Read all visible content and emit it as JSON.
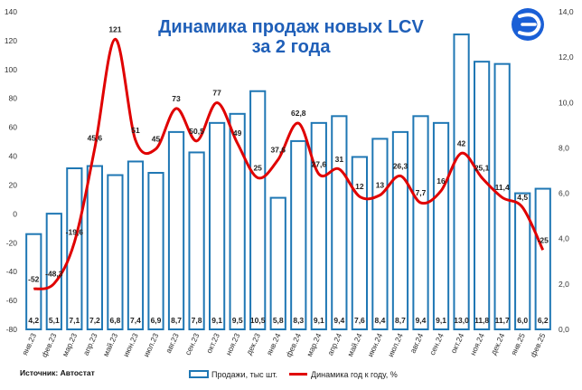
{
  "chart_data": {
    "type": "bar+line",
    "title_line1": "Динамика продаж новых LCV",
    "title_line2": "за 2 года",
    "categories": [
      "янв.23",
      "фев.23",
      "мар.23",
      "апр.23",
      "май.23",
      "июн.23",
      "июл.23",
      "авг.23",
      "сен.23",
      "окт.23",
      "ноя.23",
      "дек.23",
      "янв.24",
      "фев.24",
      "мар.24",
      "апр.24",
      "май.24",
      "июн.24",
      "июл.24",
      "авг.24",
      "сен.24",
      "окт.24",
      "ноя.24",
      "дек.24",
      "янв.25",
      "фев.25"
    ],
    "series": [
      {
        "name": "Продажи, тыс шт.",
        "kind": "bar",
        "axis": "right",
        "values": [
          4.2,
          5.1,
          7.1,
          7.2,
          6.8,
          7.4,
          6.9,
          8.7,
          7.8,
          9.1,
          9.5,
          10.5,
          5.8,
          8.3,
          9.1,
          9.4,
          7.6,
          8.4,
          8.7,
          9.4,
          9.1,
          13.0,
          11.8,
          11.7,
          6.0,
          6.2
        ],
        "labels": [
          "4,2",
          "5,1",
          "7,1",
          "7,2",
          "6,8",
          "7,4",
          "6,9",
          "8,7",
          "7,8",
          "9,1",
          "9,5",
          "10,5",
          "5,8",
          "8,3",
          "9,1",
          "9,4",
          "7,6",
          "8,4",
          "8,7",
          "9,4",
          "9,1",
          "13,0",
          "11,8",
          "11,7",
          "6,0",
          "6,2"
        ],
        "color": "#1f77b4",
        "fill": "#ffffff"
      },
      {
        "name": "Динамика год к году, %",
        "kind": "line",
        "axis": "left",
        "values": [
          -52,
          -48.3,
          -19.6,
          45.6,
          121,
          51,
          45,
          73,
          50.5,
          77,
          49,
          25,
          37.6,
          62.8,
          27.6,
          31,
          12,
          13,
          26.3,
          7.7,
          16,
          42,
          25.1,
          11.4,
          4.5,
          -25
        ],
        "labels": [
          "-52",
          "-48,3",
          "-19,6",
          "45,6",
          "121",
          "51",
          "45",
          "73",
          "50,5",
          "77",
          "49",
          "25",
          "37,6",
          "62,8",
          "27,6",
          "31",
          "12",
          "13",
          "26,3",
          "7,7",
          "16",
          "42",
          "25,1",
          "11,4",
          "4,5",
          "-25"
        ],
        "color": "#e00000"
      }
    ],
    "y_left": {
      "min": -80,
      "max": 140,
      "step": 20,
      "ticks": [
        "-80",
        "-60",
        "-40",
        "-20",
        "0",
        "20",
        "40",
        "60",
        "80",
        "100",
        "120",
        "140"
      ]
    },
    "y_right": {
      "min": 0,
      "max": 14,
      "step": 2,
      "ticks": [
        "0,0",
        "2,0",
        "4,0",
        "6,0",
        "8,0",
        "10,0",
        "12,0",
        "14,0"
      ]
    },
    "grid": false,
    "legend_position": "bottom-center",
    "source": "Источник: Автостат",
    "colors": {
      "title": "#1f5fb8",
      "bar_stroke": "#1f77b4",
      "line": "#e00000",
      "logo": "#1a5fd6"
    }
  },
  "logo": {
    "icon": "stylized-e-logo-icon"
  }
}
